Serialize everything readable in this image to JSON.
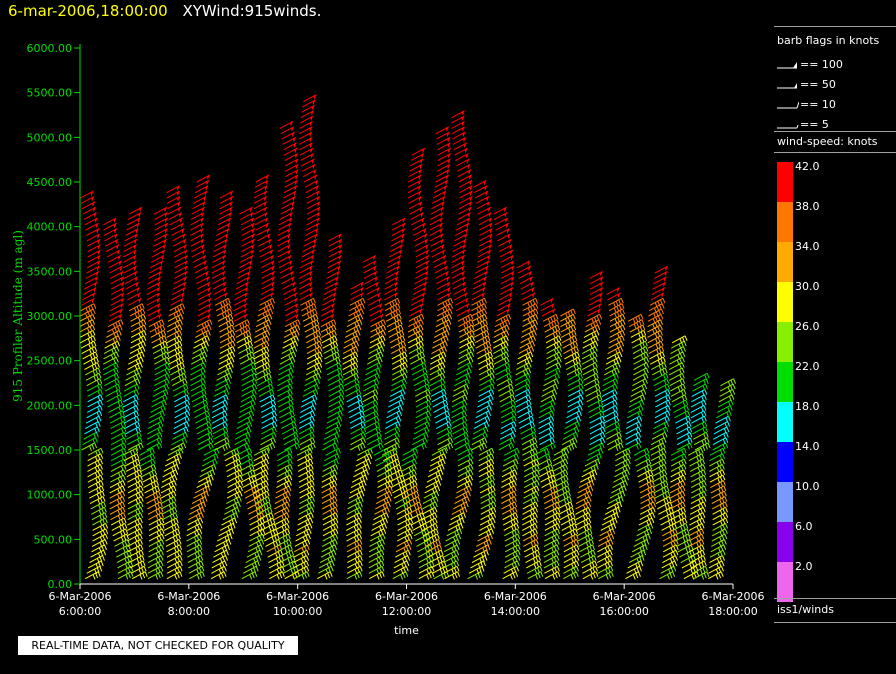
{
  "header": {
    "time": "6-mar-2006,18:00:00",
    "name": "XYWind:915winds."
  },
  "legend": {
    "flags_title": "barb flags in knots",
    "flags": [
      {
        "icon": "barb-flag-100-icon",
        "label": "== 100"
      },
      {
        "icon": "barb-flag-50-icon",
        "label": "== 50"
      },
      {
        "icon": "barb-flag-10-icon",
        "label": "== 10"
      },
      {
        "icon": "barb-flag-5-icon",
        "label": "== 5"
      }
    ],
    "colorbar_title": "wind-speed: knots",
    "colorbar": [
      {
        "label": "42.0",
        "color": "#ff0000"
      },
      {
        "label": "38.0",
        "color": "#ff7700"
      },
      {
        "label": "34.0",
        "color": "#ffaa00"
      },
      {
        "label": "30.0",
        "color": "#ffff00"
      },
      {
        "label": "26.0",
        "color": "#88ee00"
      },
      {
        "label": "22.0",
        "color": "#00dd00"
      },
      {
        "label": "18.0",
        "color": "#00ffff"
      },
      {
        "label": "14.0",
        "color": "#0000ff"
      },
      {
        "label": "10.0",
        "color": "#7799ff"
      },
      {
        "label": "6.0",
        "color": "#8800ee"
      },
      {
        "label": "2.0",
        "color": "#ee66ee"
      }
    ],
    "source": "iss1/winds"
  },
  "footnote": "REAL-TIME DATA, NOT CHECKED FOR QUALITY",
  "chart_data": {
    "type": "scatter",
    "title": "6-mar-2006,18:00:00  XYWind:915winds.",
    "xlabel": "time",
    "ylabel": "915 Profiler Altitude (m agl)",
    "y_range": [
      0,
      6000
    ],
    "y_ticks": [
      "0.00",
      "500.00",
      "1000.00",
      "1500.00",
      "2000.00",
      "2500.00",
      "3000.00",
      "3500.00",
      "4000.00",
      "4500.00",
      "5000.00",
      "5500.00",
      "6000.00"
    ],
    "x_range": [
      "2006-03-06T06:00",
      "2006-03-06T18:00"
    ],
    "x_ticks": [
      {
        "time": "2006-03-06T06:00",
        "date": "6-Mar-2006",
        "clock": "6:00:00"
      },
      {
        "time": "2006-03-06T08:00",
        "date": "6-Mar-2006",
        "clock": "8:00:00"
      },
      {
        "time": "2006-03-06T10:00",
        "date": "6-Mar-2006",
        "clock": "10:00:00"
      },
      {
        "time": "2006-03-06T12:00",
        "date": "6-Mar-2006",
        "clock": "12:00:00"
      },
      {
        "time": "2006-03-06T14:00",
        "date": "6-Mar-2006",
        "clock": "14:00:00"
      },
      {
        "time": "2006-03-06T16:00",
        "date": "6-Mar-2006",
        "clock": "16:00:00"
      },
      {
        "time": "2006-03-06T18:00",
        "date": "6-Mar-2006",
        "clock": "18:00:00"
      }
    ],
    "axis_color": "#00dd00",
    "profiles": [
      {
        "time": "2006-03-06T06:04",
        "top": 4350
      },
      {
        "time": "2006-03-06T06:30",
        "top": 4050
      },
      {
        "time": "2006-03-06T06:52",
        "top": 4150
      },
      {
        "time": "2006-03-06T07:18",
        "top": 4150
      },
      {
        "time": "2006-03-06T07:40",
        "top": 4400
      },
      {
        "time": "2006-03-06T08:06",
        "top": 4550
      },
      {
        "time": "2006-03-06T08:30",
        "top": 4350
      },
      {
        "time": "2006-03-06T08:54",
        "top": 4150
      },
      {
        "time": "2006-03-06T09:16",
        "top": 4550
      },
      {
        "time": "2006-03-06T09:42",
        "top": 5150
      },
      {
        "time": "2006-03-06T10:06",
        "top": 5450
      },
      {
        "time": "2006-03-06T10:30",
        "top": 3850
      },
      {
        "time": "2006-03-06T10:54",
        "top": 3350
      },
      {
        "time": "2006-03-06T11:16",
        "top": 3600
      },
      {
        "time": "2006-03-06T11:40",
        "top": 4050
      },
      {
        "time": "2006-03-06T12:06",
        "top": 4850
      },
      {
        "time": "2006-03-06T12:30",
        "top": 5050
      },
      {
        "time": "2006-03-06T12:54",
        "top": 5250
      },
      {
        "time": "2006-03-06T13:16",
        "top": 4450
      },
      {
        "time": "2006-03-06T13:40",
        "top": 4150
      },
      {
        "time": "2006-03-06T14:04",
        "top": 3550
      },
      {
        "time": "2006-03-06T14:30",
        "top": 3150
      },
      {
        "time": "2006-03-06T14:54",
        "top": 3050
      },
      {
        "time": "2006-03-06T15:18",
        "top": 3450
      },
      {
        "time": "2006-03-06T15:40",
        "top": 3250
      },
      {
        "time": "2006-03-06T16:06",
        "top": 2950
      },
      {
        "time": "2006-03-06T16:30",
        "top": 3500
      },
      {
        "time": "2006-03-06T16:54",
        "top": 2750
      },
      {
        "time": "2006-03-06T17:18",
        "top": 2300
      },
      {
        "time": "2006-03-06T17:42",
        "top": 2250
      }
    ],
    "speed_profile_knots": [
      {
        "alt": 0,
        "speed": 28
      },
      {
        "alt": 1000,
        "speed": 31
      },
      {
        "alt": 1800,
        "speed": 19
      },
      {
        "alt": 2300,
        "speed": 24
      },
      {
        "alt": 2800,
        "speed": 34
      },
      {
        "alt": 3200,
        "speed": 44
      },
      {
        "alt": 6000,
        "speed": 45
      }
    ]
  }
}
